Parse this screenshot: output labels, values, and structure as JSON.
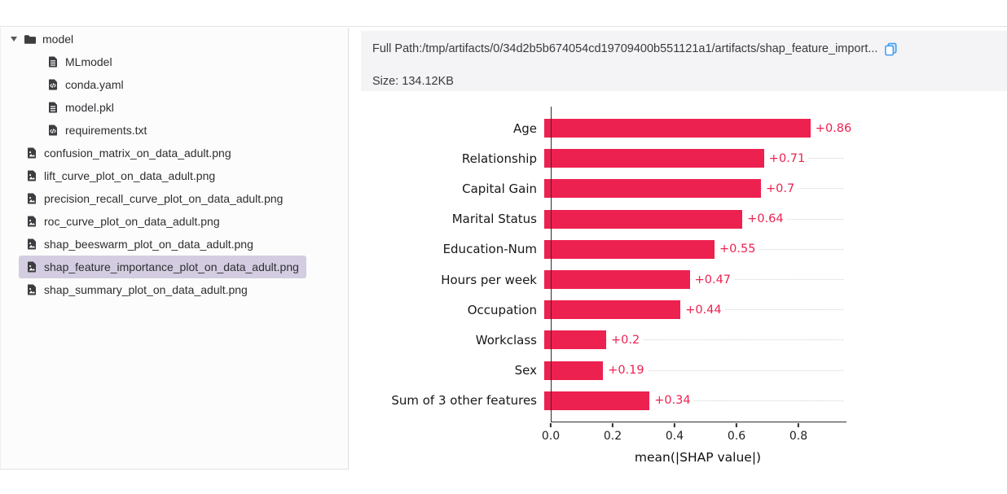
{
  "colors": {
    "bar": "#ed2150",
    "selection_bg": "#d4cde1",
    "copy_icon_blue": "#3f9bef"
  },
  "sidebar": {
    "items": [
      {
        "label": "model",
        "icon": "folder-icon",
        "level": 0,
        "folder": true,
        "expanded": true,
        "selected": false
      },
      {
        "label": "MLmodel",
        "icon": "file-text-icon",
        "level": 1,
        "selected": false
      },
      {
        "label": "conda.yaml",
        "icon": "file-code-icon",
        "level": 1,
        "selected": false
      },
      {
        "label": "model.pkl",
        "icon": "file-text-icon",
        "level": 1,
        "selected": false
      },
      {
        "label": "requirements.txt",
        "icon": "file-code-icon",
        "level": 1,
        "selected": false
      },
      {
        "label": "confusion_matrix_on_data_adult.png",
        "icon": "file-image-icon",
        "level": 0,
        "selected": false
      },
      {
        "label": "lift_curve_plot_on_data_adult.png",
        "icon": "file-image-icon",
        "level": 0,
        "selected": false
      },
      {
        "label": "precision_recall_curve_plot_on_data_adult.png",
        "icon": "file-image-icon",
        "level": 0,
        "selected": false
      },
      {
        "label": "roc_curve_plot_on_data_adult.png",
        "icon": "file-image-icon",
        "level": 0,
        "selected": false
      },
      {
        "label": "shap_beeswarm_plot_on_data_adult.png",
        "icon": "file-image-icon",
        "level": 0,
        "selected": false
      },
      {
        "label": "shap_feature_importance_plot_on_data_adult.png",
        "icon": "file-image-icon",
        "level": 0,
        "selected": true
      },
      {
        "label": "shap_summary_plot_on_data_adult.png",
        "icon": "file-image-icon",
        "level": 0,
        "selected": false
      }
    ]
  },
  "detail": {
    "full_path": "Full Path:/tmp/artifacts/0/34d2b5b674054cd19709400b551121a1/artifacts/shap_feature_import...",
    "size": "Size: 134.12KB"
  },
  "chart_data": {
    "type": "bar",
    "orientation": "horizontal",
    "title": "",
    "categories": [
      "Age",
      "Relationship",
      "Capital Gain",
      "Marital Status",
      "Education-Num",
      "Hours per week",
      "Occupation",
      "Workclass",
      "Sex",
      "Sum of 3 other features"
    ],
    "values": [
      0.86,
      0.71,
      0.7,
      0.64,
      0.55,
      0.47,
      0.44,
      0.2,
      0.19,
      0.34
    ],
    "bar_labels": [
      "+0.86",
      "+0.71",
      "+0.7",
      "+0.64",
      "+0.55",
      "+0.47",
      "+0.44",
      "+0.2",
      "+0.19",
      "+0.34"
    ],
    "xlabel": "mean(|SHAP value|)",
    "ylabel": "",
    "x_ticks": [
      {
        "value": 0.0,
        "label": "0.0"
      },
      {
        "value": 0.2,
        "label": "0.2"
      },
      {
        "value": 0.4,
        "label": "0.4"
      },
      {
        "value": 0.6,
        "label": "0.6"
      },
      {
        "value": 0.8,
        "label": "0.8"
      }
    ],
    "xlim": [
      0,
      0.95
    ],
    "grid": "dotted-horizontal",
    "legend": false,
    "bar_color": "#ed2150"
  }
}
